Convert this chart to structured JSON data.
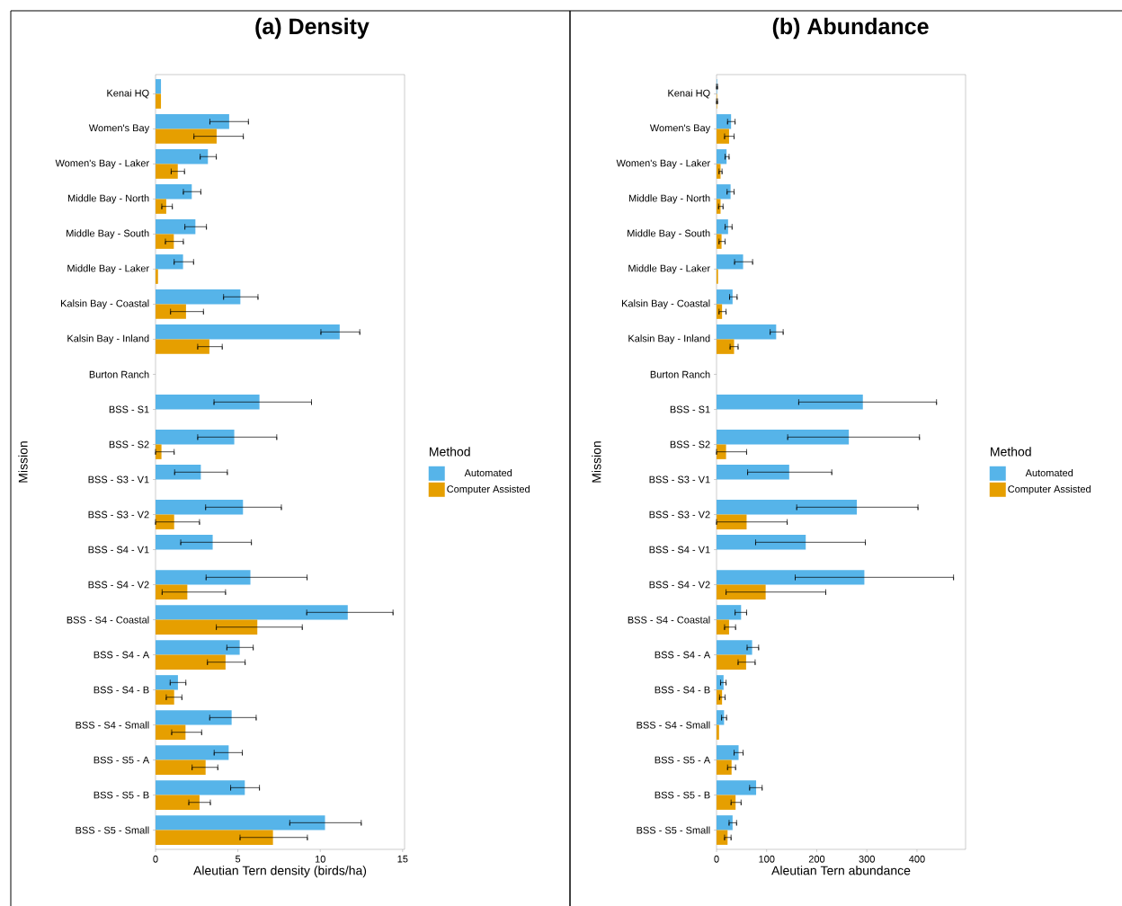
{
  "chart_data": [
    {
      "type": "bar",
      "orientation": "horizontal",
      "title": "(a) Density",
      "xlabel": "Aleutian Tern density (birds/ha)",
      "ylabel": "Mission",
      "legend_title": "Method",
      "legend": "right",
      "categories": [
        "Kenai HQ",
        "Women's Bay",
        "Women's Bay - Laker",
        "Middle Bay - North",
        "Middle Bay - South",
        "Middle Bay - Laker",
        "Kalsin Bay - Coastal",
        "Kalsin Bay - Inland",
        "Burton Ranch",
        "BSS - S1",
        "BSS - S2",
        "BSS - S3 - V1",
        "BSS - S3 - V2",
        "BSS - S4 - V1",
        "BSS - S4 - V2",
        "BSS - S4 - Coastal",
        "BSS - S4 - A",
        "BSS - S4 - B",
        "BSS - S4 - Small",
        "BSS - S5 - A",
        "BSS - S5 - B",
        "BSS - S5 - Small"
      ],
      "series": [
        {
          "name": "Automated",
          "color": "#56b4e9",
          "values": [
            0.33,
            4.47,
            3.18,
            2.2,
            2.42,
            1.67,
            5.15,
            11.18,
            null,
            6.31,
            4.78,
            2.75,
            5.31,
            3.47,
            5.76,
            11.67,
            5.11,
            1.36,
            4.62,
            4.44,
            5.42,
            10.29
          ],
          "errors": [
            null,
            [
              3.3,
              5.64
            ],
            [
              2.71,
              3.69
            ],
            [
              1.69,
              2.75
            ],
            [
              1.78,
              3.09
            ],
            [
              1.13,
              2.31
            ],
            [
              4.13,
              6.22
            ],
            [
              10.04,
              12.4
            ],
            null,
            [
              3.55,
              9.47
            ],
            [
              2.56,
              7.36
            ],
            [
              1.16,
              4.36
            ],
            [
              3.04,
              7.64
            ],
            [
              1.53,
              5.82
            ],
            [
              3.07,
              9.2
            ],
            [
              9.18,
              14.42
            ],
            [
              4.33,
              5.93
            ],
            [
              0.89,
              1.84
            ],
            [
              3.29,
              6.11
            ],
            [
              3.56,
              5.27
            ],
            [
              4.56,
              6.31
            ],
            [
              8.15,
              12.49
            ]
          ]
        },
        {
          "name": "Computer Assisted",
          "color": "#e69f00",
          "values": [
            0.33,
            3.71,
            1.35,
            0.65,
            1.11,
            0.15,
            1.85,
            3.27,
            null,
            null,
            0.36,
            null,
            1.13,
            null,
            1.93,
            6.18,
            4.25,
            1.13,
            1.82,
            3.04,
            2.67,
            7.13
          ],
          "errors": [
            null,
            [
              2.33,
              5.33
            ],
            [
              0.95,
              1.76
            ],
            [
              0.38,
              1.02
            ],
            [
              0.6,
              1.69
            ],
            null,
            [
              0.91,
              2.91
            ],
            [
              2.56,
              4.05
            ],
            null,
            null,
            [
              0,
              1.13
            ],
            null,
            [
              0,
              2.67
            ],
            null,
            [
              0.4,
              4.25
            ],
            [
              3.69,
              8.91
            ],
            [
              3.15,
              5.44
            ],
            [
              0.65,
              1.6
            ],
            [
              0.98,
              2.8
            ],
            [
              2.22,
              3.78
            ],
            [
              2.02,
              3.33
            ],
            [
              5.13,
              9.22
            ]
          ]
        }
      ],
      "xlim": [
        0,
        15.12
      ],
      "xticks": [
        0,
        5,
        10,
        15
      ]
    },
    {
      "type": "bar",
      "orientation": "horizontal",
      "title": "(b) Abundance",
      "xlabel": "Aleutian Tern abundance",
      "ylabel": "Mission",
      "legend_title": "Method",
      "legend": "right",
      "categories": [
        "Kenai HQ",
        "Women's Bay",
        "Women's Bay - Laker",
        "Middle Bay - North",
        "Middle Bay - South",
        "Middle Bay - Laker",
        "Kalsin Bay - Coastal",
        "Kalsin Bay - Inland",
        "Burton Ranch",
        "BSS - S1",
        "BSS - S2",
        "BSS - S3 - V1",
        "BSS - S3 - V2",
        "BSS - S4 - V1",
        "BSS - S4 - V2",
        "BSS - S4 - Coastal",
        "BSS - S4 - A",
        "BSS - S4 - B",
        "BSS - S4 - Small",
        "BSS - S5 - A",
        "BSS - S5 - B",
        "BSS - S5 - Small"
      ],
      "series": [
        {
          "name": "Automated",
          "color": "#56b4e9",
          "values": [
            1,
            29,
            20,
            28,
            23,
            53,
            32,
            119,
            null,
            292,
            264,
            145,
            280,
            178,
            295,
            49,
            71,
            14,
            15,
            44,
            79,
            32
          ],
          "errors": [
            [
              0,
              2
            ],
            [
              22,
              37
            ],
            [
              17,
              25
            ],
            [
              21,
              35
            ],
            [
              17,
              31
            ],
            [
              36,
              72
            ],
            [
              26,
              41
            ],
            [
              107,
              133
            ],
            null,
            [
              164,
              439
            ],
            [
              142,
              405
            ],
            [
              62,
              230
            ],
            [
              160,
              402
            ],
            [
              78,
              297
            ],
            [
              157,
              473
            ],
            [
              37,
              60
            ],
            [
              61,
              84
            ],
            [
              8,
              19
            ],
            [
              10,
              20
            ],
            [
              35,
              53
            ],
            [
              66,
              91
            ],
            [
              25,
              40
            ]
          ]
        },
        {
          "name": "Computer Assisted",
          "color": "#e69f00",
          "values": [
            1,
            25,
            8,
            8,
            10,
            3,
            11,
            35,
            null,
            null,
            19,
            null,
            60,
            null,
            98,
            25,
            59,
            11,
            5,
            30,
            38,
            22
          ],
          "errors": [
            [
              0,
              2
            ],
            [
              16,
              35
            ],
            [
              5,
              11
            ],
            [
              4,
              13
            ],
            [
              5,
              17
            ],
            null,
            [
              5,
              19
            ],
            [
              27,
              43
            ],
            null,
            null,
            [
              0,
              60
            ],
            null,
            [
              0,
              141
            ],
            null,
            [
              19,
              218
            ],
            [
              16,
              38
            ],
            [
              43,
              77
            ],
            [
              6,
              17
            ],
            null,
            [
              22,
              38
            ],
            [
              29,
              49
            ],
            [
              16,
              29
            ]
          ]
        }
      ],
      "xlim": [
        0,
        497
      ],
      "xticks": [
        0,
        100,
        200,
        300,
        400
      ]
    }
  ]
}
